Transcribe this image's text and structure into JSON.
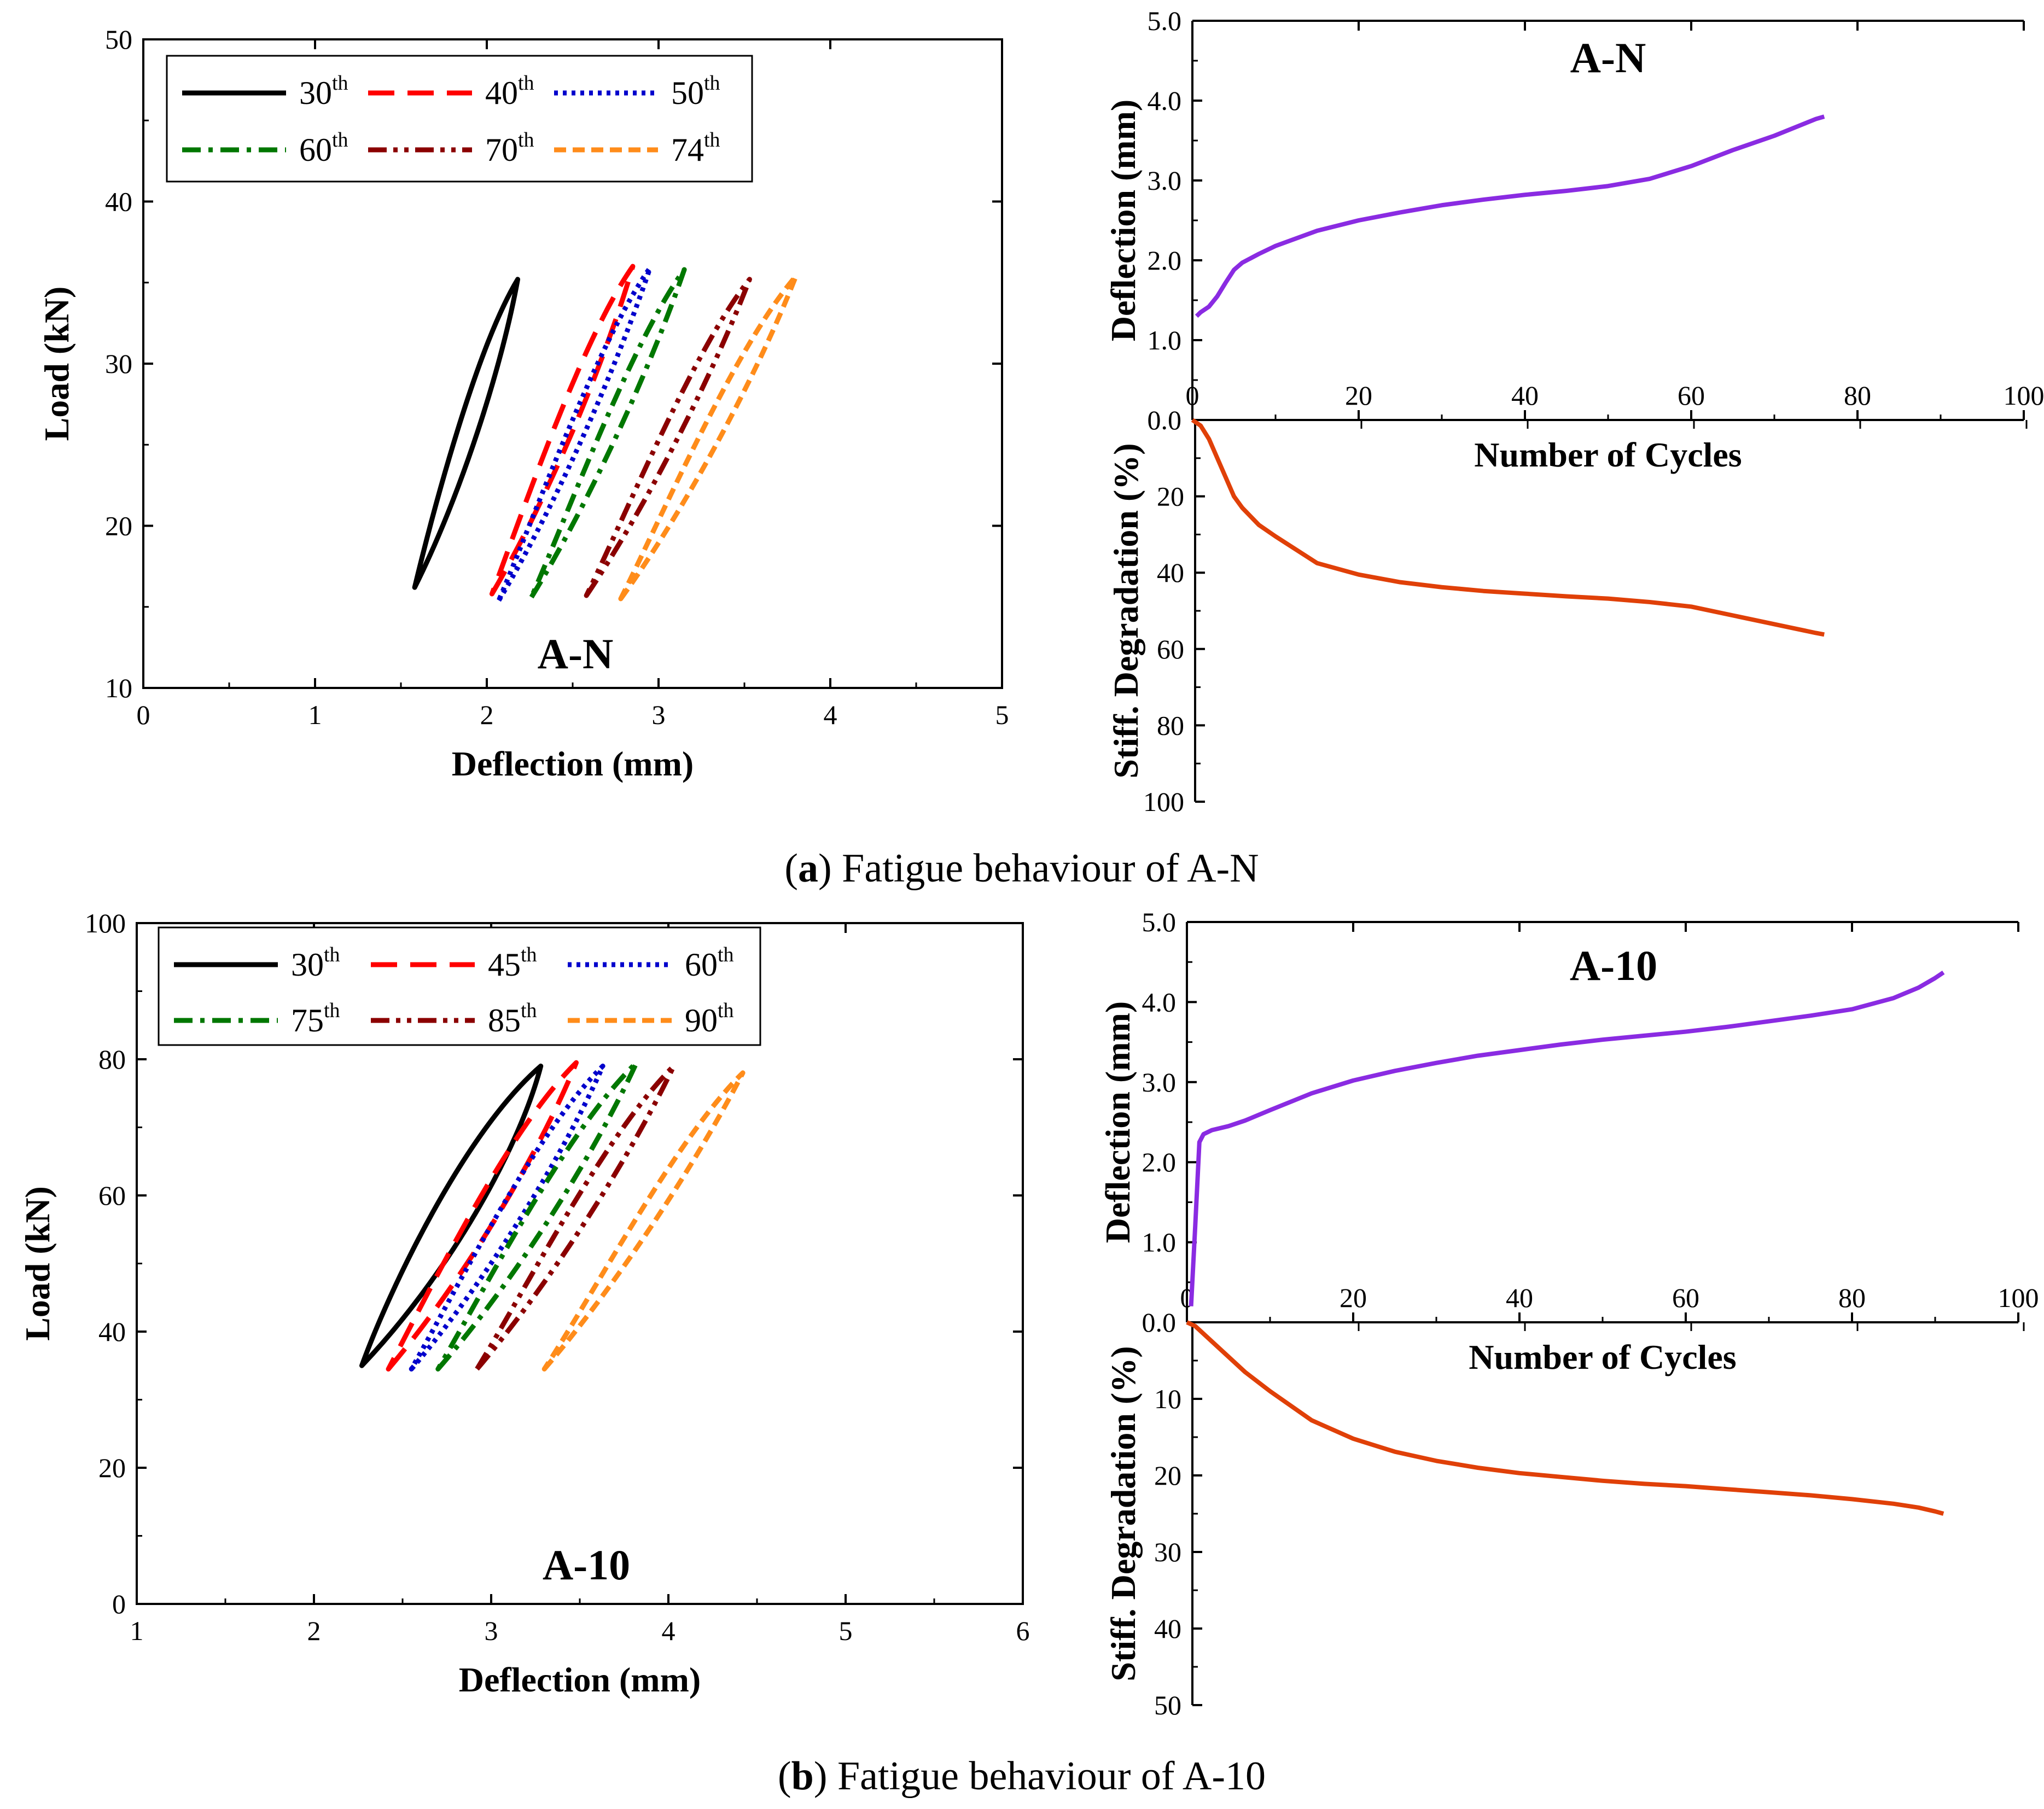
{
  "captions": {
    "a": {
      "open": "(",
      "letter": "a",
      "close": ")",
      "text": " Fatigue behaviour of A-N"
    },
    "b": {
      "open": "(",
      "letter": "b",
      "close": ")",
      "text": " Fatigue behaviour of A-10"
    }
  },
  "colors": {
    "c30": "#000000",
    "c40": "#ff0000",
    "c50": "#0000cc",
    "c60": "#007700",
    "c70": "#8b0000",
    "c74": "#ff8c1a",
    "deflection": "#8a2be2",
    "stiffness": "#e04008"
  },
  "chart_data": [
    {
      "id": "loop_AN",
      "type": "line",
      "title": "A-N",
      "xlabel": "Deflection (mm)",
      "ylabel": "Load (kN)",
      "xlim": [
        0,
        5
      ],
      "ylim": [
        10,
        50
      ],
      "xticks": [
        0,
        1,
        2,
        3,
        4,
        5
      ],
      "yticks": [
        10,
        20,
        30,
        40,
        50
      ],
      "legend_position": "top-left",
      "series": [
        {
          "name": "30",
          "sup": "th",
          "style": "solid",
          "color": "#000000",
          "x0": 1.58,
          "x1": 2.18,
          "y0": 16.2,
          "y1": 35.2,
          "gap": 0.06
        },
        {
          "name": "40",
          "sup": "th",
          "style": "dash",
          "color": "#ff0000",
          "x0": 2.03,
          "x1": 2.85,
          "y0": 15.8,
          "y1": 36.0,
          "gap": 0.05
        },
        {
          "name": "50",
          "sup": "th",
          "style": "dot",
          "color": "#0000cc",
          "x0": 2.07,
          "x1": 2.95,
          "y0": 15.4,
          "y1": 35.9,
          "gap": 0.04
        },
        {
          "name": "60",
          "sup": "th",
          "style": "dashdot",
          "color": "#007700",
          "x0": 2.26,
          "x1": 3.15,
          "y0": 15.6,
          "y1": 35.8,
          "gap": 0.04
        },
        {
          "name": "70",
          "sup": "th",
          "style": "dashdotdot",
          "color": "#8b0000",
          "x0": 2.58,
          "x1": 3.53,
          "y0": 15.7,
          "y1": 35.2,
          "gap": 0.04
        },
        {
          "name": "74",
          "sup": "th",
          "style": "shortdash",
          "color": "#ff8c1a",
          "x0": 2.78,
          "x1": 3.8,
          "y0": 15.5,
          "y1": 35.4,
          "gap": 0.05
        }
      ]
    },
    {
      "id": "cycles_AN",
      "type": "line",
      "title": "A-N",
      "xlabel": "Number of Cycles",
      "xlim": [
        0,
        100
      ],
      "xticks": [
        0,
        20,
        40,
        60,
        80,
        100
      ],
      "top": {
        "ylabel": "Deflection (mm)",
        "ylim": [
          0,
          5
        ],
        "yticks": [
          "0.0",
          "1.0",
          "2.0",
          "3.0",
          "4.0",
          "5.0"
        ],
        "x": [
          0.5,
          1,
          2,
          3,
          4,
          5,
          6,
          8,
          10,
          15,
          20,
          25,
          30,
          35,
          40,
          45,
          50,
          55,
          60,
          65,
          70,
          75,
          76
        ],
        "y": [
          1.3,
          1.35,
          1.42,
          1.55,
          1.72,
          1.88,
          1.97,
          2.08,
          2.18,
          2.37,
          2.5,
          2.6,
          2.69,
          2.76,
          2.82,
          2.87,
          2.93,
          3.02,
          3.18,
          3.38,
          3.56,
          3.77,
          3.8
        ]
      },
      "bottom": {
        "ylabel": "Stiff. Degradation (%)",
        "ylim": [
          0,
          100
        ],
        "yticks": [
          "0.0",
          "20",
          "40",
          "60",
          "80",
          "100"
        ],
        "x": [
          0,
          1,
          2,
          3,
          4,
          5,
          6,
          8,
          10,
          15,
          20,
          25,
          30,
          35,
          40,
          45,
          50,
          55,
          60,
          65,
          70,
          75,
          76
        ],
        "y": [
          0,
          1.5,
          5,
          10,
          15,
          20,
          23,
          27.5,
          30.5,
          37.5,
          40.5,
          42.5,
          43.8,
          44.8,
          45.5,
          46.2,
          46.8,
          47.7,
          48.9,
          51.2,
          53.5,
          55.8,
          56.2
        ]
      }
    },
    {
      "id": "loop_A10",
      "type": "line",
      "title": "A-10",
      "xlabel": "Deflection (mm)",
      "ylabel": "Load (kN)",
      "xlim": [
        1,
        6
      ],
      "ylim": [
        0,
        100
      ],
      "xticks": [
        1,
        2,
        3,
        4,
        5,
        6
      ],
      "yticks": [
        0,
        20,
        40,
        60,
        80,
        100
      ],
      "legend_position": "top-left",
      "series": [
        {
          "name": "30",
          "sup": "th",
          "style": "solid",
          "color": "#000000",
          "x0": 2.27,
          "x1": 3.28,
          "y0": 35.0,
          "y1": 79.0,
          "gap": 0.13
        },
        {
          "name": "45",
          "sup": "th",
          "style": "dash",
          "color": "#ff0000",
          "x0": 2.42,
          "x1": 3.48,
          "y0": 34.5,
          "y1": 79.5,
          "gap": 0.07
        },
        {
          "name": "60",
          "sup": "th",
          "style": "dot",
          "color": "#0000cc",
          "x0": 2.55,
          "x1": 3.63,
          "y0": 34.5,
          "y1": 79.0,
          "gap": 0.06
        },
        {
          "name": "75",
          "sup": "th",
          "style": "dashdot",
          "color": "#007700",
          "x0": 2.7,
          "x1": 3.82,
          "y0": 34.5,
          "y1": 79.5,
          "gap": 0.06
        },
        {
          "name": "85",
          "sup": "th",
          "style": "dashdotdot",
          "color": "#8b0000",
          "x0": 2.92,
          "x1": 4.03,
          "y0": 34.5,
          "y1": 79.0,
          "gap": 0.05
        },
        {
          "name": "90",
          "sup": "th",
          "style": "shortdash",
          "color": "#ff8c1a",
          "x0": 3.3,
          "x1": 4.42,
          "y0": 34.5,
          "y1": 78.0,
          "gap": 0.04
        }
      ]
    },
    {
      "id": "cycles_A10",
      "type": "line",
      "title": "A-10",
      "xlabel": "Number of Cycles",
      "xlim": [
        0,
        100
      ],
      "xticks": [
        0,
        20,
        40,
        60,
        80,
        100
      ],
      "top": {
        "ylabel": "Deflection (mm)",
        "ylim": [
          0,
          5
        ],
        "yticks": [
          "0.0",
          "1.0",
          "2.0",
          "3.0",
          "4.0",
          "5.0"
        ],
        "x": [
          0.5,
          1,
          1.5,
          2,
          3,
          5,
          7,
          10,
          15,
          20,
          25,
          30,
          35,
          40,
          45,
          50,
          55,
          60,
          65,
          70,
          75,
          80,
          85,
          88,
          90,
          91
        ],
        "y": [
          0.2,
          1.2,
          2.25,
          2.35,
          2.4,
          2.45,
          2.52,
          2.65,
          2.86,
          3.02,
          3.14,
          3.24,
          3.33,
          3.4,
          3.47,
          3.53,
          3.58,
          3.63,
          3.69,
          3.76,
          3.83,
          3.91,
          4.05,
          4.18,
          4.3,
          4.37
        ]
      },
      "bottom": {
        "ylabel": "Stiff. Degradation (%)",
        "ylim": [
          0,
          50
        ],
        "yticks": [
          "0.0",
          "10",
          "20",
          "30",
          "40",
          "50"
        ],
        "x": [
          0,
          1,
          2,
          3,
          5,
          7,
          10,
          15,
          20,
          25,
          30,
          35,
          40,
          45,
          50,
          55,
          60,
          65,
          70,
          75,
          80,
          85,
          88,
          90,
          91
        ],
        "y": [
          0,
          0.5,
          1.5,
          2.5,
          4.5,
          6.5,
          9.0,
          12.8,
          15.2,
          16.9,
          18.1,
          19.0,
          19.7,
          20.2,
          20.7,
          21.1,
          21.4,
          21.8,
          22.2,
          22.6,
          23.1,
          23.7,
          24.2,
          24.7,
          25.0
        ]
      }
    }
  ]
}
